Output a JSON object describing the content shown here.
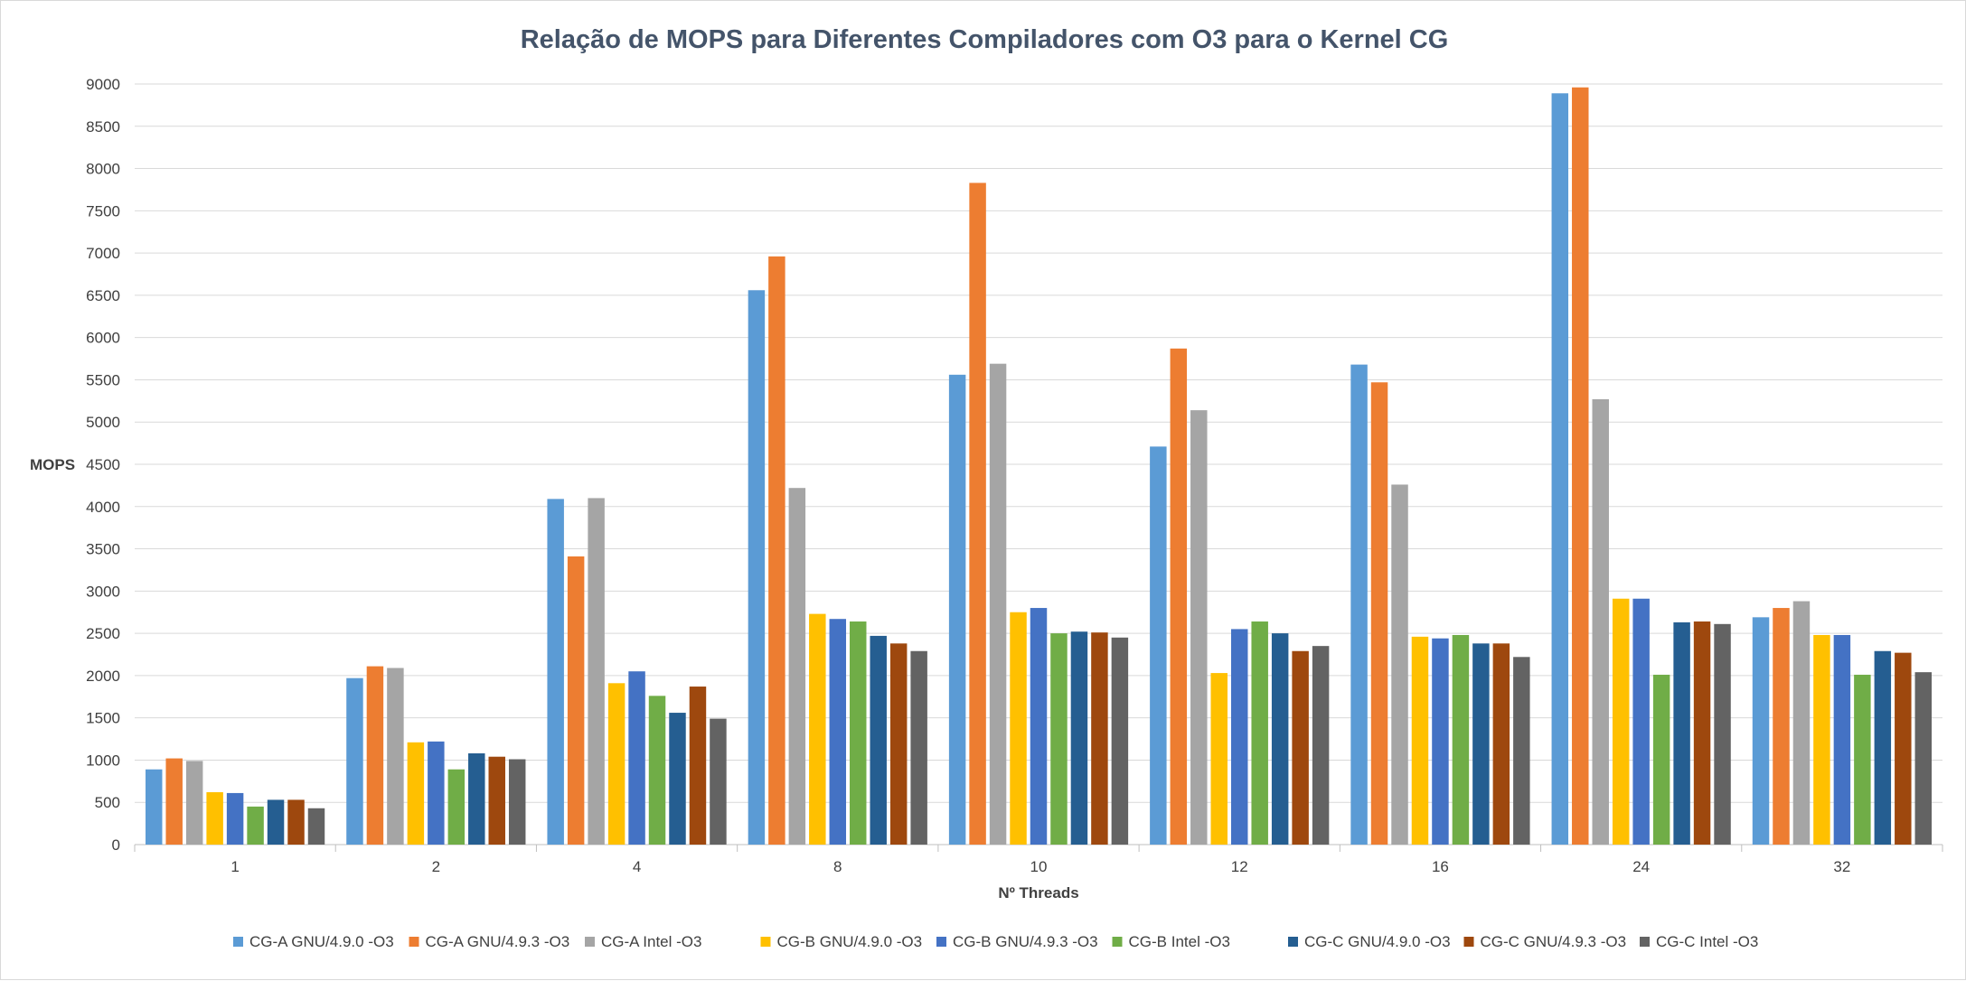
{
  "chart_data": {
    "type": "bar",
    "title": "Relação de MOPS para Diferentes Compiladores com O3 para o Kernel CG",
    "xlabel": "Nº Threads",
    "ylabel": "MOPS",
    "ylim": [
      0,
      9000
    ],
    "ytick_step": 500,
    "grid": true,
    "legend_position": "bottom",
    "categories": [
      "1",
      "2",
      "4",
      "8",
      "10",
      "12",
      "16",
      "24",
      "32"
    ],
    "series": [
      {
        "name": "CG-A GNU/4.9.0 -O3",
        "color": "#5b9bd5",
        "values": [
          890,
          1970,
          4090,
          6560,
          5560,
          4710,
          5680,
          8890,
          2690
        ]
      },
      {
        "name": "CG-A GNU/4.9.3 -O3",
        "color": "#ed7d31",
        "values": [
          1020,
          2110,
          3410,
          6960,
          7830,
          5870,
          5470,
          8960,
          2800
        ]
      },
      {
        "name": "CG-A Intel -O3",
        "color": "#a5a5a5",
        "values": [
          990,
          2090,
          4100,
          4220,
          5690,
          5140,
          4260,
          5270,
          2880
        ]
      },
      {
        "name": "CG-B GNU/4.9.0 -O3",
        "color": "#ffc000",
        "values": [
          620,
          1210,
          1910,
          2730,
          2750,
          2030,
          2460,
          2910,
          2480
        ]
      },
      {
        "name": "CG-B GNU/4.9.3 -O3",
        "color": "#4472c4",
        "values": [
          610,
          1220,
          2050,
          2670,
          2800,
          2550,
          2440,
          2910,
          2480
        ]
      },
      {
        "name": "CG-B Intel -O3",
        "color": "#70ad47",
        "values": [
          450,
          890,
          1760,
          2640,
          2500,
          2640,
          2480,
          2010,
          2010
        ]
      },
      {
        "name": "CG-C GNU/4.9.0 -O3",
        "color": "#255e91",
        "values": [
          530,
          1080,
          1560,
          2470,
          2520,
          2500,
          2380,
          2630,
          2290
        ]
      },
      {
        "name": "CG-C GNU/4.9.3 -O3",
        "color": "#9e480e",
        "values": [
          530,
          1040,
          1870,
          2380,
          2510,
          2290,
          2380,
          2640,
          2270
        ]
      },
      {
        "name": "CG-C Intel -O3",
        "color": "#636363",
        "values": [
          430,
          1010,
          1490,
          2290,
          2450,
          2350,
          2220,
          2610,
          2040
        ]
      }
    ]
  }
}
